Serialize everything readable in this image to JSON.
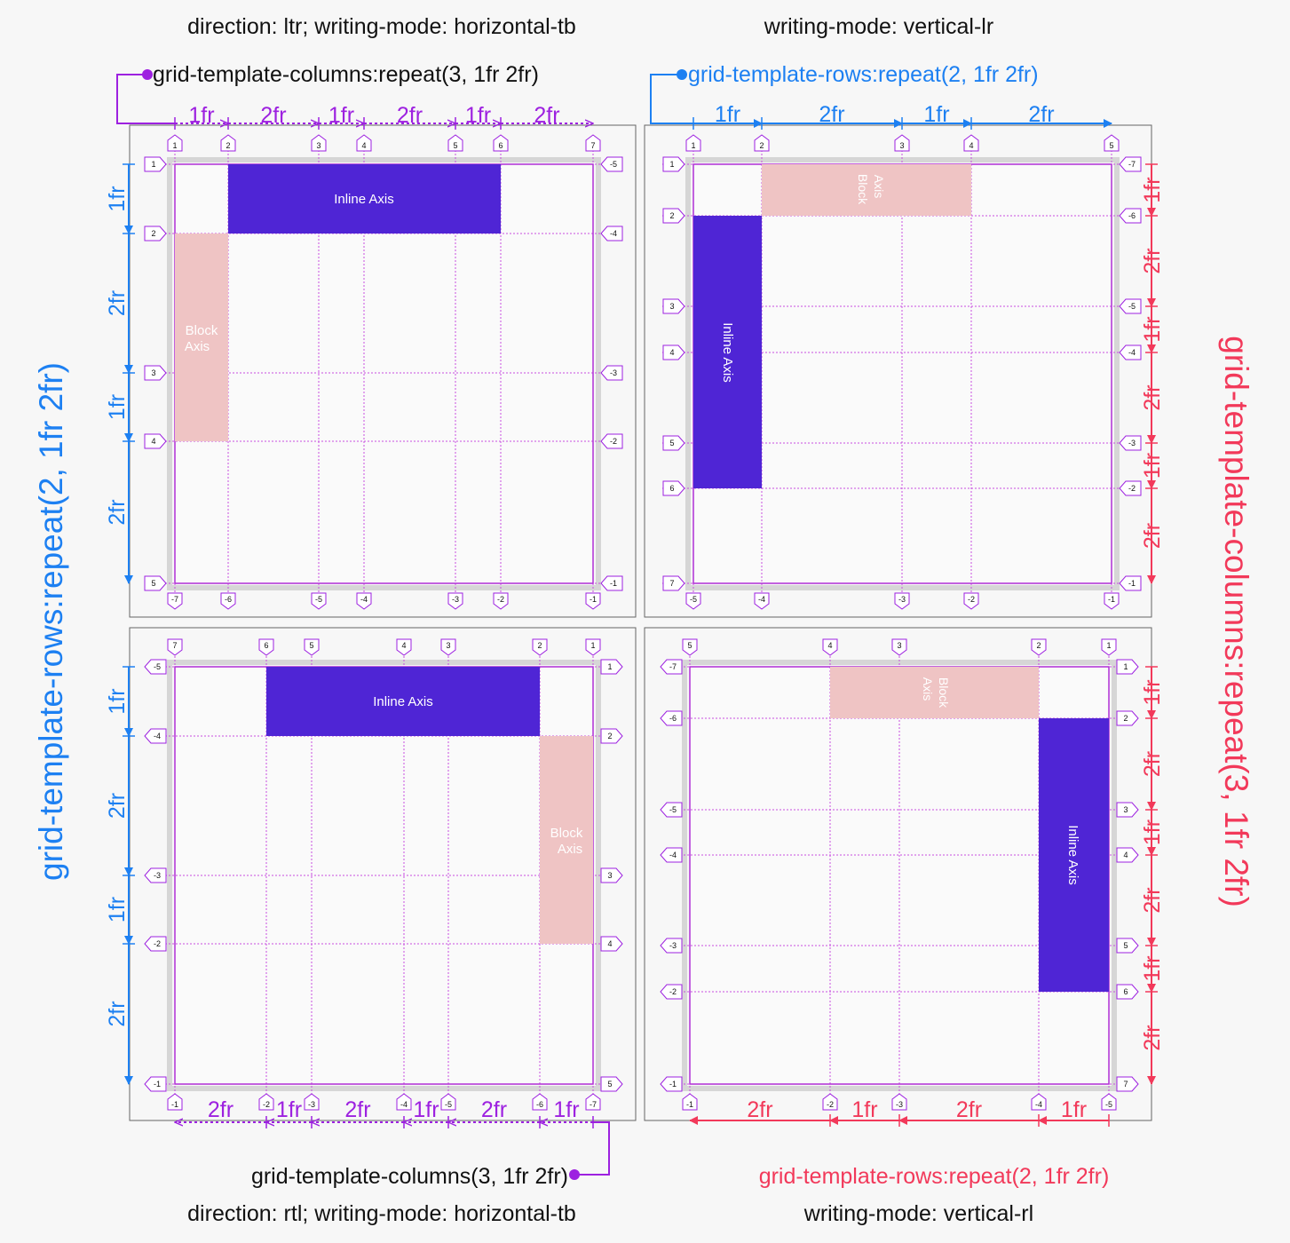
{
  "colors": {
    "inline": "#4f25d5",
    "block": "#efc4c4",
    "blue": "#1d80f2",
    "red": "#f2395a",
    "purple": "#9d21e0",
    "line": "#c84ee0"
  },
  "headings": {
    "top_left": "direction: ltr; writing-mode: horizontal-tb",
    "top_right": "writing-mode: vertical-lr",
    "bottom_left": "direction: rtl; writing-mode: horizontal-tb",
    "bottom_right": "writing-mode: vertical-rl"
  },
  "callouts": {
    "top_left": "grid-template-columns:repeat(3, 1fr 2fr)",
    "top_right": "grid-template-rows:repeat(2, 1fr 2fr)",
    "bottom_left": "grid-template-columns(3, 1fr 2fr)",
    "bottom_right": "grid-template-rows:repeat(2, 1fr 2fr)",
    "left_side": "grid-template-rows:repeat(2, 1fr 2fr)",
    "right_side": "grid-template-columns:repeat(3, 1fr 2fr)"
  },
  "labels": {
    "inline_axis": "Inline Axis",
    "block_line1": "Block",
    "block_line2": "Axis",
    "axis_word": "Axis",
    "block_word": "Block",
    "fr1": "1fr",
    "fr2": "2fr"
  },
  "panels": {
    "top_left": {
      "top_badges": [
        "1",
        "2",
        "3",
        "4",
        "5",
        "6",
        "7"
      ],
      "bottom_badges": [
        "-7",
        "-6",
        "-5",
        "-4",
        "-3",
        "-2",
        "-1"
      ],
      "left_badges": [
        "1",
        "2",
        "3",
        "4",
        "5"
      ],
      "right_badges": [
        "-5",
        "-4",
        "-3",
        "-2",
        "-1"
      ]
    },
    "top_right": {
      "top_badges": [
        "1",
        "2",
        "3",
        "4",
        "5"
      ],
      "bottom_badges": [
        "-5",
        "-4",
        "-3",
        "-2",
        "-1"
      ],
      "left_badges": [
        "1",
        "2",
        "3",
        "4",
        "5",
        "6",
        "7"
      ],
      "right_badges": [
        "-7",
        "-6",
        "-5",
        "-4",
        "-3",
        "-2",
        "-1"
      ]
    },
    "bottom_left": {
      "top_badges": [
        "7",
        "6",
        "5",
        "4",
        "3",
        "2",
        "1"
      ],
      "bottom_badges": [
        "-1",
        "-2",
        "-3",
        "-4",
        "-5",
        "-6",
        "-7"
      ],
      "left_badges": [
        "-5",
        "-4",
        "-3",
        "-2",
        "-1"
      ],
      "right_badges": [
        "1",
        "2",
        "3",
        "4",
        "5"
      ]
    },
    "bottom_right": {
      "top_badges": [
        "5",
        "4",
        "3",
        "2",
        "1"
      ],
      "bottom_badges": [
        "-1",
        "-2",
        "-3",
        "-4",
        "-5"
      ],
      "left_badges": [
        "-7",
        "-6",
        "-5",
        "-4",
        "-3",
        "-2",
        "-1"
      ],
      "right_badges": [
        "1",
        "2",
        "3",
        "4",
        "5",
        "6",
        "7"
      ]
    }
  }
}
